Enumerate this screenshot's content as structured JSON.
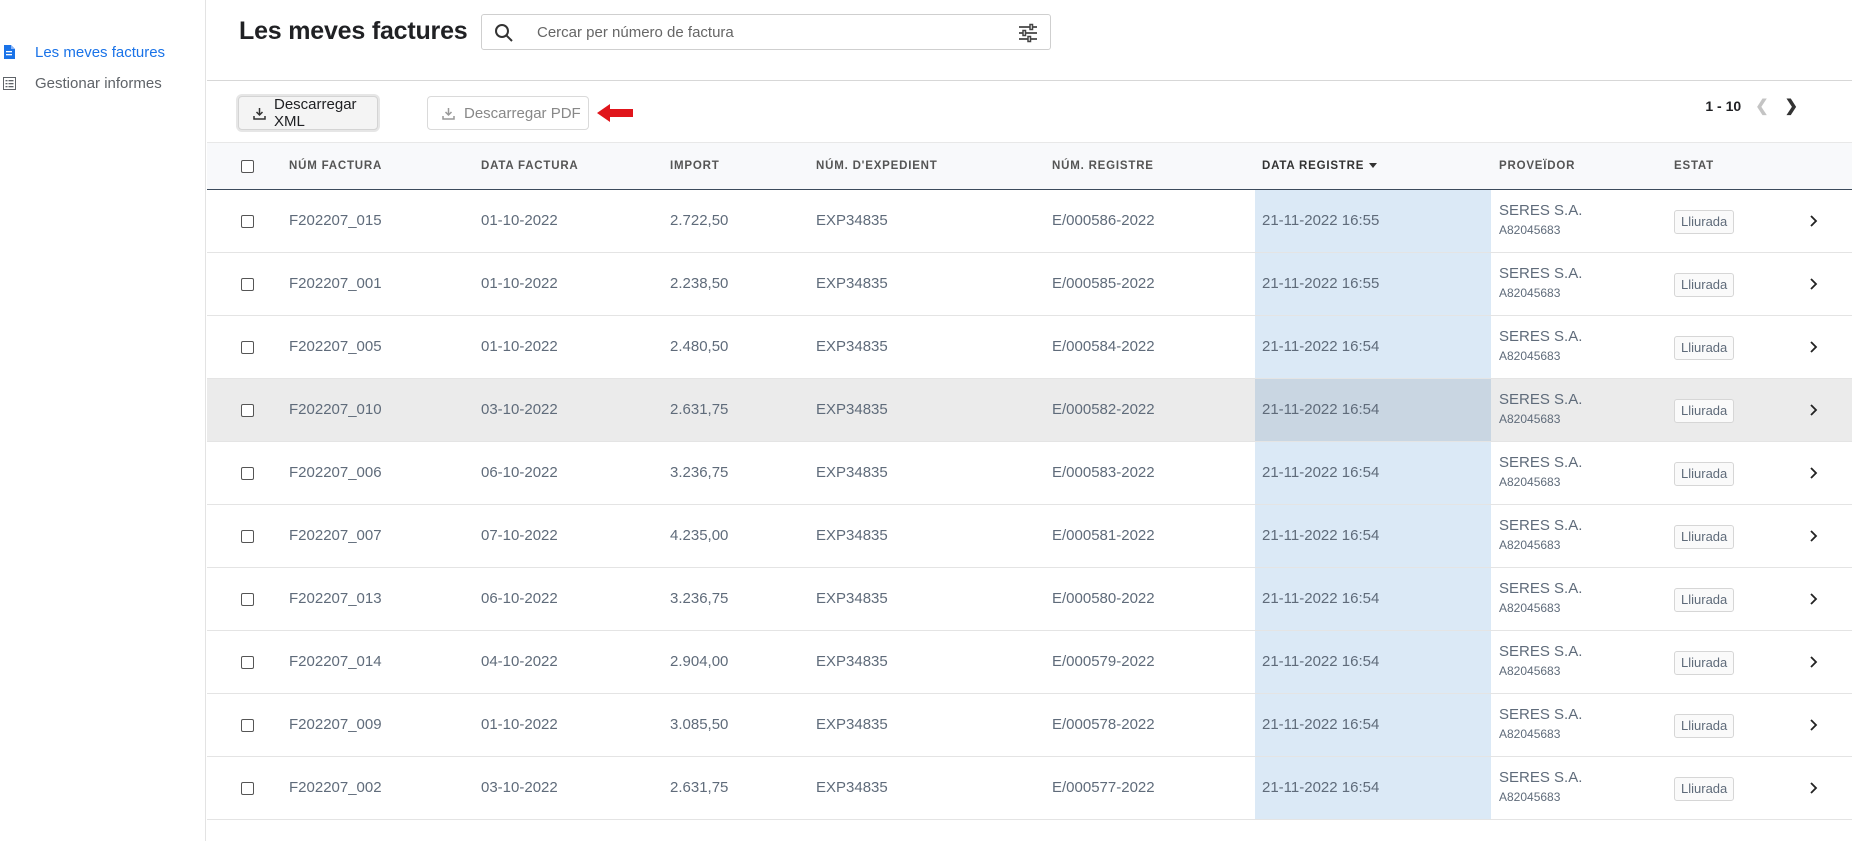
{
  "sidebar": {
    "items": [
      {
        "label": "Les meves factures",
        "icon": "document-icon",
        "active": true
      },
      {
        "label": "Gestionar informes",
        "icon": "report-icon",
        "active": false
      }
    ]
  },
  "header": {
    "title": "Les meves factures",
    "search_placeholder": "Cercar per número de factura"
  },
  "toolbar": {
    "xml_label": "Descarregar XML",
    "pdf_label": "Descarregar PDF"
  },
  "pagination": {
    "range": "1 - 10"
  },
  "table": {
    "columns": [
      "NÚM FACTURA",
      "DATA FACTURA",
      "IMPORT",
      "NÚM. D'EXPEDIENT",
      "NÚM. REGISTRE",
      "DATA REGISTRE",
      "PROVEÏDOR",
      "ESTAT"
    ],
    "sorted_column": "DATA REGISTRE",
    "rows": [
      {
        "num": "F202207_015",
        "date": "01-10-2022",
        "import": "2.722,50",
        "exp": "EXP34835",
        "reg": "E/000586-2022",
        "date_reg": "21-11-2022 16:55",
        "prov": "SERES S.A.",
        "nif": "A82045683",
        "estat": "Lliurada"
      },
      {
        "num": "F202207_001",
        "date": "01-10-2022",
        "import": "2.238,50",
        "exp": "EXP34835",
        "reg": "E/000585-2022",
        "date_reg": "21-11-2022 16:55",
        "prov": "SERES S.A.",
        "nif": "A82045683",
        "estat": "Lliurada"
      },
      {
        "num": "F202207_005",
        "date": "01-10-2022",
        "import": "2.480,50",
        "exp": "EXP34835",
        "reg": "E/000584-2022",
        "date_reg": "21-11-2022 16:54",
        "prov": "SERES S.A.",
        "nif": "A82045683",
        "estat": "Lliurada"
      },
      {
        "num": "F202207_010",
        "date": "03-10-2022",
        "import": "2.631,75",
        "exp": "EXP34835",
        "reg": "E/000582-2022",
        "date_reg": "21-11-2022 16:54",
        "prov": "SERES S.A.",
        "nif": "A82045683",
        "estat": "Lliurada"
      },
      {
        "num": "F202207_006",
        "date": "06-10-2022",
        "import": "3.236,75",
        "exp": "EXP34835",
        "reg": "E/000583-2022",
        "date_reg": "21-11-2022 16:54",
        "prov": "SERES S.A.",
        "nif": "A82045683",
        "estat": "Lliurada"
      },
      {
        "num": "F202207_007",
        "date": "07-10-2022",
        "import": "4.235,00",
        "exp": "EXP34835",
        "reg": "E/000581-2022",
        "date_reg": "21-11-2022 16:54",
        "prov": "SERES S.A.",
        "nif": "A82045683",
        "estat": "Lliurada"
      },
      {
        "num": "F202207_013",
        "date": "06-10-2022",
        "import": "3.236,75",
        "exp": "EXP34835",
        "reg": "E/000580-2022",
        "date_reg": "21-11-2022 16:54",
        "prov": "SERES S.A.",
        "nif": "A82045683",
        "estat": "Lliurada"
      },
      {
        "num": "F202207_014",
        "date": "04-10-2022",
        "import": "2.904,00",
        "exp": "EXP34835",
        "reg": "E/000579-2022",
        "date_reg": "21-11-2022 16:54",
        "prov": "SERES S.A.",
        "nif": "A82045683",
        "estat": "Lliurada"
      },
      {
        "num": "F202207_009",
        "date": "01-10-2022",
        "import": "3.085,50",
        "exp": "EXP34835",
        "reg": "E/000578-2022",
        "date_reg": "21-11-2022 16:54",
        "prov": "SERES S.A.",
        "nif": "A82045683",
        "estat": "Lliurada"
      },
      {
        "num": "F202207_002",
        "date": "03-10-2022",
        "import": "2.631,75",
        "exp": "EXP34835",
        "reg": "E/000577-2022",
        "date_reg": "21-11-2022 16:54",
        "prov": "SERES S.A.",
        "nif": "A82045683",
        "estat": "Lliurada"
      }
    ],
    "highlighted_row": 3
  },
  "colors": {
    "accent": "#1a73e8",
    "sorted_column_bg": "#dbe9f6",
    "annotation_arrow": "#e0151b"
  }
}
